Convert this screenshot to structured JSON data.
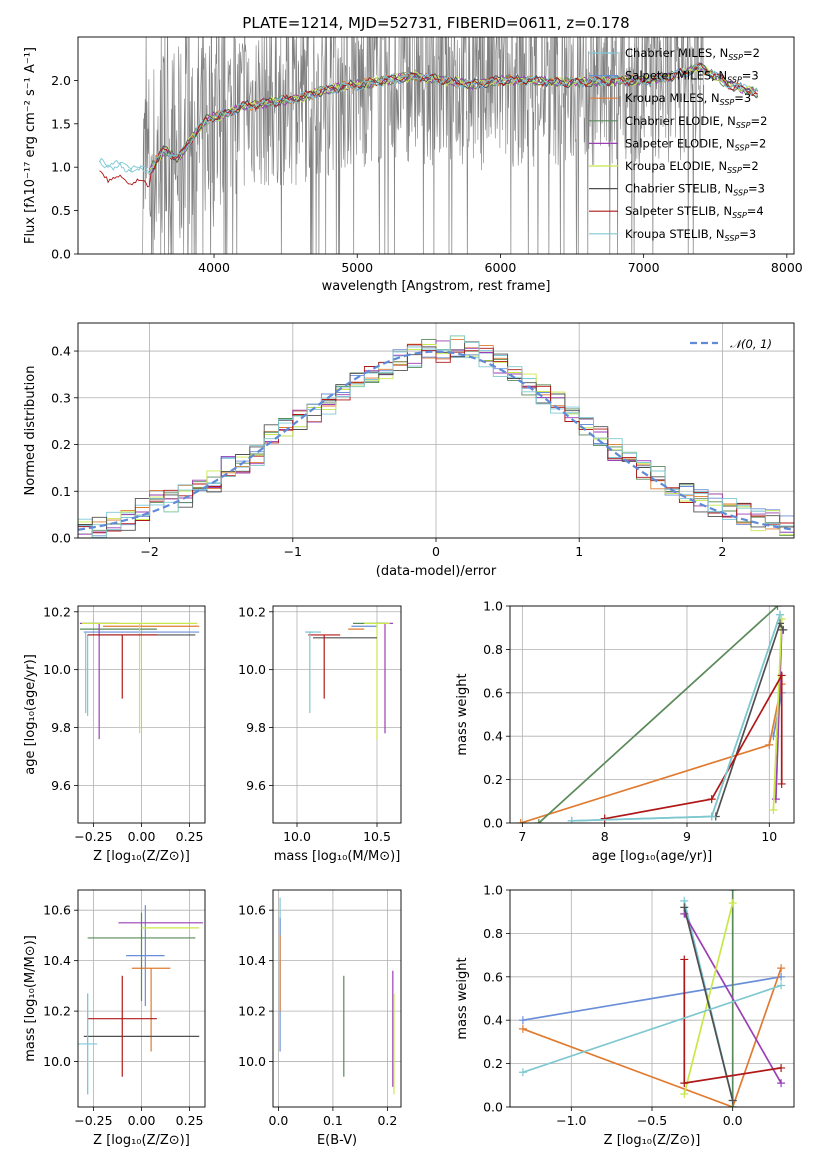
{
  "title": "PLATE=1214, MJD=52731, FIBERID=0611, z=0.178",
  "colors": {
    "data": "#7f7f7f",
    "models": [
      "#7ec8d8",
      "#6a8fd8",
      "#e07b30",
      "#5a8a5a",
      "#9b3fb5",
      "#c8e84a",
      "#505050",
      "#b01818",
      "#80c8d0"
    ]
  },
  "chart_data": [
    {
      "id": "spectrum",
      "type": "line",
      "xlabel": "wavelength [Angstrom, rest frame]",
      "ylabel": "Flux [fλ10⁻¹⁷ erg cm⁻² s⁻¹ A⁻¹]",
      "xlim": [
        3050,
        8050
      ],
      "ylim": [
        0,
        2.5
      ],
      "xticks": [
        4000,
        5000,
        6000,
        7000,
        8000
      ],
      "yticks": [
        0.0,
        0.5,
        1.0,
        1.5,
        2.0
      ],
      "xtick_labels": [
        "4000",
        "5000",
        "6000",
        "7000",
        "8000"
      ],
      "ytick_labels": [
        "0.0",
        "0.5",
        "1.0",
        "1.5",
        "2.0"
      ],
      "data_range": [
        3500,
        7420
      ],
      "legend_position": "top-right",
      "legend": [
        {
          "name": "Chabrier MILES, N",
          "sub": "SSP",
          "tail": "=2"
        },
        {
          "name": "Salpeter MILES, N",
          "sub": "SSP",
          "tail": "=3"
        },
        {
          "name": "Kroupa MILES, N",
          "sub": "SSP",
          "tail": "=3"
        },
        {
          "name": "Chabrier ELODIE, N",
          "sub": "SSP",
          "tail": "=2"
        },
        {
          "name": "Salpeter ELODIE, N",
          "sub": "SSP",
          "tail": "=2"
        },
        {
          "name": "Kroupa ELODIE, N",
          "sub": "SSP",
          "tail": "=2"
        },
        {
          "name": "Chabrier STELIB, N",
          "sub": "SSP",
          "tail": "=3"
        },
        {
          "name": "Salpeter STELIB, N",
          "sub": "SSP",
          "tail": "=4"
        },
        {
          "name": "Kroupa STELIB, N",
          "sub": "SSP",
          "tail": "=3"
        }
      ],
      "model_x": [
        3200,
        3400,
        3550,
        3650,
        3750,
        3850,
        3950,
        4050,
        4200,
        4400,
        4600,
        4800,
        5000,
        5200,
        5400,
        5600,
        5800,
        6000,
        6200,
        6400,
        6600,
        6800,
        7000,
        7200,
        7400,
        7600,
        7800
      ],
      "model_y": [
        1.05,
        1.0,
        0.95,
        1.2,
        1.1,
        1.35,
        1.55,
        1.6,
        1.7,
        1.75,
        1.8,
        1.9,
        1.95,
        2.0,
        2.05,
        2.0,
        1.95,
        2.0,
        2.0,
        1.98,
        1.98,
        2.0,
        2.0,
        2.05,
        2.15,
        1.95,
        1.85
      ]
    },
    {
      "id": "residual-histogram",
      "type": "bar",
      "xlabel": "(data-model)/error",
      "ylabel": "Normed distribution",
      "xlim": [
        -2.5,
        2.5
      ],
      "ylim": [
        0,
        0.46
      ],
      "xticks": [
        -2,
        -1,
        0,
        1,
        2
      ],
      "yticks": [
        0.0,
        0.1,
        0.2,
        0.3,
        0.4
      ],
      "xtick_labels": [
        "−2",
        "−1",
        "0",
        "1",
        "2"
      ],
      "ytick_labels": [
        "0.0",
        "0.1",
        "0.2",
        "0.3",
        "0.4"
      ],
      "legend": "𝒩(0, 1)",
      "bin_width": 0.1,
      "hist_center": [
        0.02,
        0.02,
        0.03,
        0.04,
        0.06,
        0.08,
        0.08,
        0.09,
        0.11,
        0.12,
        0.15,
        0.16,
        0.18,
        0.22,
        0.24,
        0.25,
        0.27,
        0.29,
        0.31,
        0.33,
        0.35,
        0.36,
        0.38,
        0.39,
        0.4,
        0.4,
        0.41,
        0.4,
        0.39,
        0.37,
        0.35,
        0.33,
        0.31,
        0.29,
        0.26,
        0.24,
        0.22,
        0.19,
        0.17,
        0.15,
        0.13,
        0.11,
        0.1,
        0.08,
        0.07,
        0.06,
        0.05,
        0.04,
        0.04,
        0.03
      ]
    },
    {
      "id": "age-vs-Z",
      "type": "scatter",
      "xlabel": "Z [log₁₀(Z/Z⊙)]",
      "ylabel": "age  [log₁₀(age/yr)]",
      "xlim": [
        -0.33,
        0.33
      ],
      "ylim": [
        9.47,
        10.22
      ],
      "xticks": [
        -0.25,
        0.0,
        0.25
      ],
      "yticks": [
        9.6,
        9.8,
        10.0,
        10.2
      ],
      "xtick_labels": [
        "−0.25",
        "0.00",
        "0.25"
      ],
      "ytick_labels": [
        "9.6",
        "9.8",
        "10.0",
        "10.2"
      ],
      "points": [
        {
          "x": -0.28,
          "y": 10.12,
          "xerr": 0.0,
          "yerr": [
            0.28,
            0.0
          ]
        },
        {
          "x": 0.0,
          "y": 10.13,
          "xerr": 0.3,
          "yerr": [
            0.0,
            0.0
          ]
        },
        {
          "x": 0.05,
          "y": 10.15,
          "xerr": 0.25,
          "yerr": [
            0.0,
            0.0
          ]
        },
        {
          "x": -0.12,
          "y": 10.14,
          "xerr": 0.2,
          "yerr": [
            0.0,
            0.0
          ]
        },
        {
          "x": -0.22,
          "y": 10.16,
          "xerr": 0.1,
          "yerr": [
            0.4,
            0.0
          ]
        },
        {
          "x": -0.01,
          "y": 10.16,
          "xerr": 0.3,
          "yerr": [
            0.38,
            0.0
          ]
        },
        {
          "x": 0.0,
          "y": 10.12,
          "xerr": 0.28,
          "yerr": [
            0.0,
            0.0
          ]
        },
        {
          "x": -0.1,
          "y": 10.12,
          "xerr": 0.18,
          "yerr": [
            0.22,
            0.0
          ]
        },
        {
          "x": -0.29,
          "y": 10.13,
          "xerr": 0.0,
          "yerr": [
            0.28,
            0.0
          ]
        }
      ]
    },
    {
      "id": "age-vs-mass",
      "type": "scatter",
      "xlabel": "mass [log₁₀(M/M⊙)]",
      "ylabel": "",
      "xlim": [
        9.85,
        10.65
      ],
      "ylim": [
        9.47,
        10.22
      ],
      "xticks": [
        10.0,
        10.5
      ],
      "yticks": [
        9.6,
        9.8,
        10.0,
        10.2
      ],
      "xtick_labels": [
        "10.0",
        "10.5"
      ],
      "ytick_labels": [
        "9.6",
        "9.8",
        "10.0",
        "10.2"
      ],
      "points": [
        {
          "x": 10.1,
          "y": 10.13,
          "xerr": 0.05,
          "yerr": [
            0.0,
            0.0
          ]
        },
        {
          "x": 10.42,
          "y": 10.15,
          "xerr": 0.08,
          "yerr": [
            0.0,
            0.0
          ]
        },
        {
          "x": 10.37,
          "y": 10.14,
          "xerr": 0.05,
          "yerr": [
            0.0,
            0.0
          ]
        },
        {
          "x": 10.45,
          "y": 10.16,
          "xerr": 0.1,
          "yerr": [
            0.0,
            0.0
          ]
        },
        {
          "x": 10.55,
          "y": 10.16,
          "xerr": 0.05,
          "yerr": [
            0.38,
            0.0
          ]
        },
        {
          "x": 10.5,
          "y": 10.16,
          "xerr": 0.08,
          "yerr": [
            0.4,
            0.0
          ]
        },
        {
          "x": 10.3,
          "y": 10.11,
          "xerr": 0.2,
          "yerr": [
            0.0,
            0.0
          ]
        },
        {
          "x": 10.17,
          "y": 10.12,
          "xerr": 0.1,
          "yerr": [
            0.22,
            0.0
          ]
        },
        {
          "x": 10.08,
          "y": 10.13,
          "xerr": 0.02,
          "yerr": [
            0.28,
            0.0
          ]
        }
      ]
    },
    {
      "id": "weight-vs-age",
      "type": "line",
      "xlabel": "age  [log₁₀(age/yr)]",
      "ylabel": "mass weight",
      "xlim": [
        6.85,
        10.3
      ],
      "ylim": [
        0.0,
        1.0
      ],
      "xticks": [
        7,
        8,
        9,
        10
      ],
      "yticks": [
        0.0,
        0.2,
        0.4,
        0.6,
        0.8,
        1.0
      ],
      "xtick_labels": [
        "7",
        "8",
        "9",
        "10"
      ],
      "ytick_labels": [
        "0.0",
        "0.2",
        "0.4",
        "0.6",
        "0.8",
        "1.0"
      ],
      "series": [
        {
          "x": [
            7.6,
            9.3,
            10.13
          ],
          "y": [
            0.01,
            0.03,
            0.96
          ]
        },
        {
          "x": [
            10.05,
            10.15
          ],
          "y": [
            0.4,
            0.6
          ]
        },
        {
          "x": [
            6.98,
            10.0,
            10.15
          ],
          "y": [
            0.0,
            0.36,
            0.64
          ]
        },
        {
          "x": [
            7.2,
            10.1
          ],
          "y": [
            0.0,
            1.0
          ]
        },
        {
          "x": [
            10.08,
            10.15
          ],
          "y": [
            0.11,
            0.89
          ]
        },
        {
          "x": [
            10.05,
            10.15
          ],
          "y": [
            0.06,
            0.94
          ]
        },
        {
          "x": [
            9.35,
            10.13,
            10.17
          ],
          "y": [
            0.03,
            0.92,
            0.89
          ]
        },
        {
          "x": [
            8.0,
            9.3,
            10.15,
            10.15
          ],
          "y": [
            0.02,
            0.11,
            0.68,
            0.18
          ]
        },
        {
          "x": [
            7.6,
            9.3,
            10.13
          ],
          "y": [
            0.01,
            0.03,
            0.96
          ]
        }
      ]
    },
    {
      "id": "mass-vs-Z",
      "type": "scatter",
      "xlabel": "Z [log₁₀(Z/Z⊙)]",
      "ylabel": "mass [log₁₀(M/M⊙)]",
      "xlim": [
        -0.33,
        0.33
      ],
      "ylim": [
        9.82,
        10.68
      ],
      "xticks": [
        -0.25,
        0.0,
        0.25
      ],
      "yticks": [
        10.0,
        10.2,
        10.4,
        10.6
      ],
      "xtick_labels": [
        "−0.25",
        "0.00",
        "0.25"
      ],
      "ytick_labels": [
        "10.0",
        "10.2",
        "10.4",
        "10.6"
      ],
      "points": [
        {
          "x": -0.28,
          "y": 10.07,
          "xerr": 0.05,
          "yerr": [
            0.2,
            0.2
          ]
        },
        {
          "x": 0.02,
          "y": 10.42,
          "xerr": 0.1,
          "yerr": [
            0.2,
            0.2
          ]
        },
        {
          "x": 0.05,
          "y": 10.37,
          "xerr": 0.1,
          "yerr": [
            0.33,
            0.0
          ]
        },
        {
          "x": 0.0,
          "y": 10.49,
          "xerr": 0.28,
          "yerr": [
            0.25,
            0.1
          ]
        },
        {
          "x": 0.1,
          "y": 10.55,
          "xerr": 0.22,
          "yerr": [
            0.0,
            0.0
          ]
        },
        {
          "x": 0.15,
          "y": 10.53,
          "xerr": 0.15,
          "yerr": [
            0.0,
            0.0
          ]
        },
        {
          "x": 0.0,
          "y": 10.1,
          "xerr": 0.3,
          "yerr": [
            0.0,
            0.0
          ]
        },
        {
          "x": -0.1,
          "y": 10.17,
          "xerr": 0.18,
          "yerr": [
            0.23,
            0.17
          ]
        },
        {
          "x": -0.28,
          "y": 10.07,
          "xerr": 0.0,
          "yerr": [
            0.2,
            0.2
          ]
        }
      ]
    },
    {
      "id": "mass-vs-ebv",
      "type": "scatter",
      "xlabel": "E(B-V)",
      "ylabel": "",
      "xlim": [
        -0.01,
        0.225
      ],
      "ylim": [
        9.82,
        10.68
      ],
      "xticks": [
        0.0,
        0.1,
        0.2
      ],
      "yticks": [
        10.0,
        10.2,
        10.4,
        10.6
      ],
      "xtick_labels": [
        "0.0",
        "0.1",
        "0.2"
      ],
      "ytick_labels": [
        "10.0",
        "10.2",
        "10.4",
        "10.6"
      ],
      "points": [
        {
          "x": 0.003,
          "y": 10.55,
          "xerr": 0.0,
          "yerr": [
            0.05,
            0.1
          ]
        },
        {
          "x": 0.003,
          "y": 10.42,
          "xerr": 0.0,
          "yerr": [
            0.38,
            0.15
          ]
        },
        {
          "x": 0.003,
          "y": 10.3,
          "xerr": 0.0,
          "yerr": [
            0.1,
            0.2
          ]
        },
        {
          "x": 0.12,
          "y": 10.17,
          "xerr": 0.0,
          "yerr": [
            0.23,
            0.17
          ]
        },
        {
          "x": 0.21,
          "y": 10.1,
          "xerr": 0.0,
          "yerr": [
            0.2,
            0.26
          ]
        },
        {
          "x": 0.212,
          "y": 10.07,
          "xerr": 0.0,
          "yerr": [
            0.2,
            0.2
          ]
        }
      ]
    },
    {
      "id": "weight-vs-Z",
      "type": "line",
      "xlabel": "Z [log₁₀(Z/Z⊙)]",
      "ylabel": "mass weight",
      "xlim": [
        -1.38,
        0.38
      ],
      "ylim": [
        0.0,
        1.0
      ],
      "xticks": [
        -1.0,
        -0.5,
        0.0
      ],
      "yticks": [
        0.0,
        0.2,
        0.4,
        0.6,
        0.8,
        1.0
      ],
      "xtick_labels": [
        "−1.0",
        "−0.5",
        "0.0"
      ],
      "ytick_labels": [
        "0.0",
        "0.2",
        "0.4",
        "0.6",
        "0.8",
        "1.0"
      ],
      "series": [
        {
          "x": [
            -0.3,
            0.0
          ],
          "y": [
            0.95,
            0.03
          ]
        },
        {
          "x": [
            -1.3,
            0.3
          ],
          "y": [
            0.4,
            0.6
          ]
        },
        {
          "x": [
            -1.3,
            0.0,
            0.3
          ],
          "y": [
            0.36,
            0.0,
            0.64
          ]
        },
        {
          "x": [
            0.0,
            0.0
          ],
          "y": [
            1.0,
            0.0
          ]
        },
        {
          "x": [
            -0.3,
            0.3
          ],
          "y": [
            0.89,
            0.11
          ]
        },
        {
          "x": [
            -0.3,
            0.0
          ],
          "y": [
            0.06,
            0.94
          ]
        },
        {
          "x": [
            -0.3,
            0.0
          ],
          "y": [
            0.92,
            0.03
          ]
        },
        {
          "x": [
            -0.3,
            -0.3,
            0.3
          ],
          "y": [
            0.68,
            0.11,
            0.18
          ]
        },
        {
          "x": [
            -1.3,
            0.3
          ],
          "y": [
            0.16,
            0.56
          ]
        }
      ]
    }
  ]
}
